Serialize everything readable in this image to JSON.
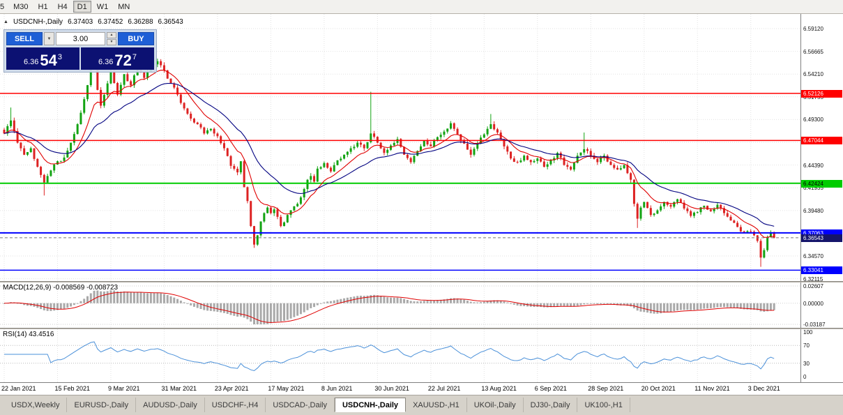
{
  "toolbar": {
    "timeframes": [
      "5",
      "M30",
      "H1",
      "H4",
      "D1",
      "W1",
      "MN"
    ],
    "active": "D1"
  },
  "info_bar": {
    "collapse_icon": "▲",
    "symbol": "USDCNH-,Daily",
    "open": "6.37403",
    "high": "6.37452",
    "low": "6.36288",
    "close": "6.36543"
  },
  "trade_panel": {
    "sell_label": "SELL",
    "buy_label": "BUY",
    "volume": "3.00",
    "dropdown_icon": "▼",
    "step_up_icon": "▲",
    "step_down_icon": "▼",
    "sell_price": {
      "prefix": "6.36",
      "main": "54",
      "sup": "3"
    },
    "buy_price": {
      "prefix": "6.36",
      "main": "72",
      "sup": "7"
    }
  },
  "price_axis": {
    "ticks": [
      "6.59120",
      "6.56665",
      "6.54210",
      "6.51755",
      "6.49300",
      "6.46845",
      "6.44390",
      "6.41935",
      "6.39480",
      "6.37025",
      "6.34570",
      "6.32115"
    ]
  },
  "levels": [
    {
      "value": 6.52126,
      "label": "6.52126",
      "color": "#ff0000",
      "text_color": "#ffffff",
      "width": 1.5
    },
    {
      "value": 6.47044,
      "label": "6.47044",
      "color": "#ff0000",
      "text_color": "#ffffff",
      "width": 1.5
    },
    {
      "value": 6.42424,
      "label": "6.42424",
      "color": "#00cc00",
      "text_color": "#000000",
      "width": 2
    },
    {
      "value": 6.37063,
      "label": "6.37063",
      "color": "#0000ff",
      "text_color": "#ffffff",
      "width": 2
    },
    {
      "value": 6.33041,
      "label": "6.33041",
      "color": "#0000ff",
      "text_color": "#ffffff",
      "width": 1.5
    }
  ],
  "bid_badge": {
    "value": 6.36543,
    "label": "6.36543",
    "color": "#15156b"
  },
  "macd_panel": {
    "label": "MACD(12,26,9) -0.008569 -0.008723",
    "ticks": [
      {
        "v": 0.02607,
        "label": "0.02607"
      },
      {
        "v": 0,
        "label": "0.00000"
      },
      {
        "v": -0.03187,
        "label": "-0.03187"
      }
    ],
    "scale": {
      "max": 0.02607,
      "min": -0.03187
    }
  },
  "rsi_panel": {
    "label": "RSI(14) 43.4516",
    "ticks": [
      {
        "v": 100,
        "label": "100"
      },
      {
        "v": 70,
        "label": "70"
      },
      {
        "v": 30,
        "label": "30"
      },
      {
        "v": 0,
        "label": "0"
      }
    ]
  },
  "tabs": {
    "items": [
      "USDX,Weekly",
      "EURUSD-,Daily",
      "AUDUSD-,Daily",
      "USDCHF-,H4",
      "USDCAD-,Daily",
      "USDCNH-,Daily",
      "XAUUSD-,H1",
      "UKOil-,Daily",
      "DJ30-,Daily",
      "UK100-,H1"
    ],
    "active_index": 5
  },
  "colors": {
    "up": "#12a312",
    "down": "#dd2222",
    "ma_fast": "#e00000",
    "ma_slow": "#000080",
    "macd_hist": "#a9a9a9",
    "macd_signal": "#e00000",
    "rsi_line": "#4a90d9",
    "grid": "#e2e2e2",
    "bid_line": "#777777",
    "button_blue": "#1e5fd6",
    "price_display_navy": "#0c1172"
  },
  "chart_data": {
    "type": "candlestick",
    "symbol": "USDCNH",
    "timeframe": "Daily",
    "count": 232,
    "y_range": {
      "top": 6.60701,
      "bottom": 6.31861
    },
    "quotes": {
      "bid": 6.36543,
      "ask": 6.36727
    },
    "ohlc_current": {
      "open": 6.37403,
      "high": 6.37452,
      "low": 6.36288,
      "close": 6.36543
    },
    "horizontal_levels": [
      6.52126,
      6.47044,
      6.42424,
      6.37063,
      6.33041
    ],
    "x_ticks": [
      {
        "i": 0,
        "label": "22 Jan 2021"
      },
      {
        "i": 16,
        "label": "15 Feb 2021"
      },
      {
        "i": 32,
        "label": "9 Mar 2021"
      },
      {
        "i": 48,
        "label": "31 Mar 2021"
      },
      {
        "i": 64,
        "label": "23 Apr 2021"
      },
      {
        "i": 80,
        "label": "17 May 2021"
      },
      {
        "i": 96,
        "label": "8 Jun 2021"
      },
      {
        "i": 112,
        "label": "30 Jun 2021"
      },
      {
        "i": 128,
        "label": "22 Jul 2021"
      },
      {
        "i": 144,
        "label": "13 Aug 2021"
      },
      {
        "i": 160,
        "label": "6 Sep 2021"
      },
      {
        "i": 176,
        "label": "28 Sep 2021"
      },
      {
        "i": 192,
        "label": "20 Oct 2021"
      },
      {
        "i": 208,
        "label": "11 Nov 2021"
      },
      {
        "i": 224,
        "label": "3 Dec 2021"
      }
    ],
    "price_anchors": [
      [
        0,
        6.478
      ],
      [
        2,
        6.492
      ],
      [
        4,
        6.468
      ],
      [
        6,
        6.455
      ],
      [
        8,
        6.462
      ],
      [
        10,
        6.442
      ],
      [
        12,
        6.425
      ],
      [
        14,
        6.438
      ],
      [
        16,
        6.448
      ],
      [
        18,
        6.452
      ],
      [
        20,
        6.468
      ],
      [
        22,
        6.488
      ],
      [
        24,
        6.515
      ],
      [
        26,
        6.548
      ],
      [
        27,
        6.556
      ],
      [
        28,
        6.525
      ],
      [
        29,
        6.508
      ],
      [
        31,
        6.532
      ],
      [
        32,
        6.545
      ],
      [
        34,
        6.52
      ],
      [
        36,
        6.542
      ],
      [
        38,
        6.53
      ],
      [
        40,
        6.55
      ],
      [
        42,
        6.538
      ],
      [
        44,
        6.552
      ],
      [
        46,
        6.556
      ],
      [
        48,
        6.546
      ],
      [
        50,
        6.532
      ],
      [
        52,
        6.52
      ],
      [
        54,
        6.505
      ],
      [
        56,
        6.494
      ],
      [
        58,
        6.488
      ],
      [
        60,
        6.478
      ],
      [
        62,
        6.483
      ],
      [
        64,
        6.475
      ],
      [
        66,
        6.462
      ],
      [
        68,
        6.443
      ],
      [
        70,
        6.436
      ],
      [
        71,
        6.448
      ],
      [
        72,
        6.42
      ],
      [
        73,
        6.405
      ],
      [
        74,
        6.378
      ],
      [
        75,
        6.358
      ],
      [
        76,
        6.368
      ],
      [
        77,
        6.383
      ],
      [
        78,
        6.392
      ],
      [
        79,
        6.398
      ],
      [
        80,
        6.392
      ],
      [
        81,
        6.396
      ],
      [
        82,
        6.388
      ],
      [
        83,
        6.378
      ],
      [
        84,
        6.382
      ],
      [
        85,
        6.39
      ],
      [
        86,
        6.395
      ],
      [
        88,
        6.402
      ],
      [
        90,
        6.418
      ],
      [
        91,
        6.428
      ],
      [
        92,
        6.432
      ],
      [
        93,
        6.426
      ],
      [
        94,
        6.44
      ],
      [
        96,
        6.446
      ],
      [
        98,
        6.437
      ],
      [
        100,
        6.449
      ],
      [
        102,
        6.455
      ],
      [
        104,
        6.462
      ],
      [
        106,
        6.468
      ],
      [
        108,
        6.462
      ],
      [
        110,
        6.478
      ],
      [
        112,
        6.468
      ],
      [
        114,
        6.457
      ],
      [
        116,
        6.465
      ],
      [
        118,
        6.472
      ],
      [
        120,
        6.455
      ],
      [
        122,
        6.447
      ],
      [
        124,
        6.459
      ],
      [
        126,
        6.47
      ],
      [
        128,
        6.464
      ],
      [
        130,
        6.474
      ],
      [
        132,
        6.48
      ],
      [
        134,
        6.489
      ],
      [
        136,
        6.477
      ],
      [
        138,
        6.467
      ],
      [
        140,
        6.455
      ],
      [
        142,
        6.467
      ],
      [
        144,
        6.477
      ],
      [
        146,
        6.488
      ],
      [
        148,
        6.479
      ],
      [
        150,
        6.464
      ],
      [
        152,
        6.451
      ],
      [
        154,
        6.447
      ],
      [
        156,
        6.454
      ],
      [
        158,
        6.447
      ],
      [
        160,
        6.451
      ],
      [
        162,
        6.442
      ],
      [
        164,
        6.449
      ],
      [
        166,
        6.457
      ],
      [
        168,
        6.444
      ],
      [
        170,
        6.439
      ],
      [
        172,
        6.454
      ],
      [
        174,
        6.461
      ],
      [
        176,
        6.454
      ],
      [
        178,
        6.447
      ],
      [
        180,
        6.454
      ],
      [
        182,
        6.444
      ],
      [
        184,
        6.439
      ],
      [
        186,
        6.444
      ],
      [
        188,
        6.428
      ],
      [
        189,
        6.402
      ],
      [
        190,
        6.386
      ],
      [
        191,
        6.398
      ],
      [
        192,
        6.404
      ],
      [
        194,
        6.39
      ],
      [
        196,
        6.395
      ],
      [
        198,
        6.404
      ],
      [
        200,
        6.399
      ],
      [
        202,
        6.407
      ],
      [
        204,
        6.397
      ],
      [
        206,
        6.389
      ],
      [
        208,
        6.393
      ],
      [
        210,
        6.4
      ],
      [
        212,
        6.394
      ],
      [
        214,
        6.401
      ],
      [
        216,
        6.392
      ],
      [
        218,
        6.384
      ],
      [
        220,
        6.377
      ],
      [
        222,
        6.371
      ],
      [
        224,
        6.372
      ],
      [
        225,
        6.368
      ],
      [
        226,
        6.362
      ],
      [
        227,
        6.344
      ],
      [
        228,
        6.352
      ],
      [
        229,
        6.366
      ],
      [
        230,
        6.371
      ],
      [
        231,
        6.36543
      ]
    ],
    "wick_events": [
      {
        "i": 2,
        "high": 6.506
      },
      {
        "i": 12,
        "low": 6.411
      },
      {
        "i": 26,
        "high": 6.562
      },
      {
        "i": 27,
        "high": 6.57
      },
      {
        "i": 32,
        "high": 6.566
      },
      {
        "i": 45,
        "high": 6.568
      },
      {
        "i": 75,
        "low": 6.3545
      },
      {
        "i": 110,
        "high": 6.523
      },
      {
        "i": 146,
        "high": 6.499
      },
      {
        "i": 174,
        "high": 6.479
      },
      {
        "i": 190,
        "low": 6.376
      },
      {
        "i": 227,
        "low": 6.334
      }
    ],
    "indicators": {
      "macd": {
        "type": "MACD",
        "params": [
          12,
          26,
          9
        ],
        "current_main": -0.008569,
        "current_signal": -0.008723
      },
      "rsi": {
        "type": "RSI",
        "period": 14,
        "current": 43.4516,
        "levels": [
          70,
          30
        ]
      }
    }
  }
}
